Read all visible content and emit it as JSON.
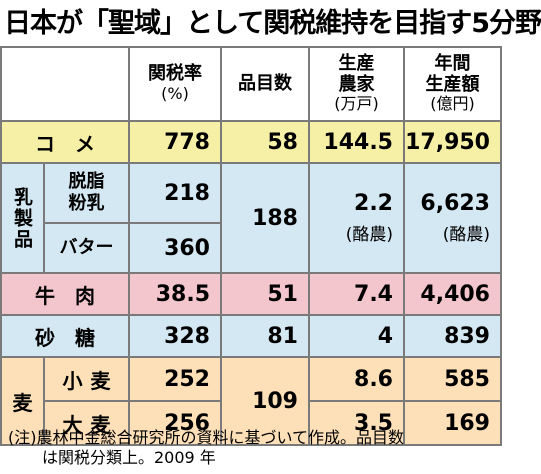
{
  "title": "日本が「聖域」として関税維持を目指す5分野",
  "headers": {
    "tariff": "関税率",
    "tariff_unit": "(%)",
    "items": "品目数",
    "farms": "生産\n農家",
    "farms_l1": "生産",
    "farms_l2": "農家",
    "farms_unit": "(万戸)",
    "output_l1": "年間",
    "output_l2": "生産額",
    "output_unit": "(億円)"
  },
  "rows": {
    "rice": {
      "label": "コメ",
      "tariff": "778",
      "items": "58",
      "farms": "144.5",
      "output": "17,950"
    },
    "dairy": {
      "group": "乳製品",
      "skim_milk": {
        "label_l1": "脱脂",
        "label_l2": "粉乳",
        "tariff": "218"
      },
      "butter": {
        "label": "バター",
        "tariff": "360"
      },
      "items": "188",
      "farms": "2.2",
      "farms_sub": "(酪農)",
      "output": "6,623",
      "output_sub": "(酪農)"
    },
    "beef": {
      "label": "牛肉",
      "tariff": "38.5",
      "items": "51",
      "farms": "7.4",
      "output": "4,406"
    },
    "sugar": {
      "label": "砂糖",
      "tariff": "328",
      "items": "81",
      "farms": "4",
      "output": "839"
    },
    "wheat": {
      "group": "麦",
      "wheat": {
        "label": "小麦",
        "tariff": "252",
        "farms": "8.6",
        "output": "585"
      },
      "barley": {
        "label": "大麦",
        "tariff": "256",
        "farms": "3.5",
        "output": "169"
      },
      "items": "109"
    }
  },
  "note": {
    "line1": "(注)農林中金総合研究所の資料に基づいて作成。品目数",
    "line2": "は関税分類上。2009 年"
  }
}
